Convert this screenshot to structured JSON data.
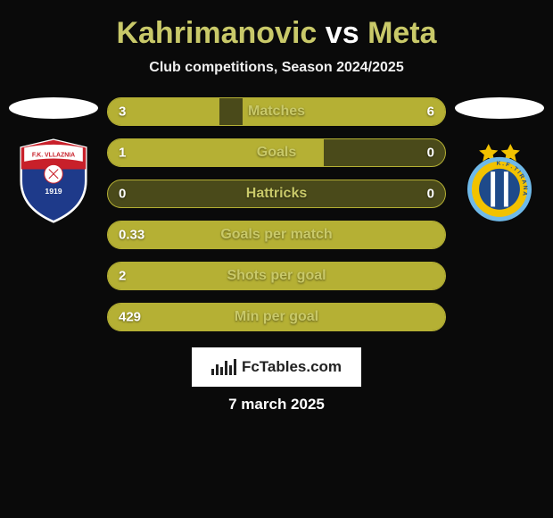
{
  "header": {
    "title_prefix": "Kahrimanovic",
    "title_vs": "vs",
    "title_suffix": "Meta",
    "title_color_player": "#c9c969",
    "title_color_vs": "#ffffff",
    "subtitle": "Club competitions, Season 2024/2025"
  },
  "players": {
    "left": {
      "crest": {
        "type": "shield",
        "top_text": "F.K. VLLAZNIA",
        "top_bg": "#ffffff",
        "top_text_color": "#c8202a",
        "year": "1919",
        "shield_top_color": "#c8202a",
        "shield_bottom_color": "#1e3a8a",
        "ball_color": "#ffffff"
      }
    },
    "right": {
      "crest": {
        "type": "round",
        "outer_color": "#6fb9e8",
        "ring_color": "#f2c200",
        "ring_text": "K.F. TIRANA",
        "ring_text_color": "#1e4a8a",
        "inner_color": "#1e4a8a",
        "stripe_color": "#ffffff",
        "stars_color": "#f2c200",
        "stars_count": 2
      }
    }
  },
  "stats": [
    {
      "label": "Matches",
      "left_text": "3",
      "right_text": "6",
      "left_pct": 33,
      "right_pct": 60,
      "show_right_text": true
    },
    {
      "label": "Goals",
      "left_text": "1",
      "right_text": "0",
      "left_pct": 64,
      "right_pct": 0,
      "show_right_text": true
    },
    {
      "label": "Hattricks",
      "left_text": "0",
      "right_text": "0",
      "left_pct": 0,
      "right_pct": 0,
      "show_right_text": true
    },
    {
      "label": "Goals per match",
      "left_text": "0.33",
      "right_text": "",
      "left_pct": 100,
      "right_pct": 0,
      "show_right_text": false
    },
    {
      "label": "Shots per goal",
      "left_text": "2",
      "right_text": "",
      "left_pct": 100,
      "right_pct": 0,
      "show_right_text": false
    },
    {
      "label": "Min per goal",
      "left_text": "429",
      "right_text": "",
      "left_pct": 100,
      "right_pct": 0,
      "show_right_text": false
    }
  ],
  "colors": {
    "bar_fill": "#b5b034",
    "bar_track": "#4a4a1a",
    "bar_border": "#b5b034",
    "stat_label_color": "#c9c969",
    "value_text_color": "#ffffff",
    "background": "#0a0a0a"
  },
  "footer": {
    "site_label": "FcTables.com",
    "date": "7 march 2025"
  }
}
